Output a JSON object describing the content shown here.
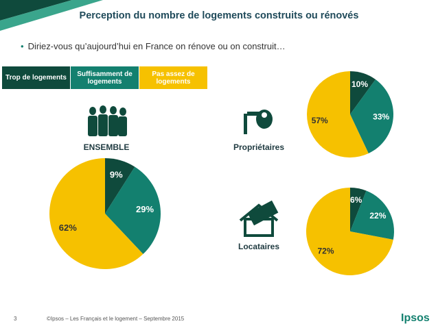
{
  "slide": {
    "title": "Perception du nombre de logements construits ou rénovés",
    "question": "Diriez-vous qu’aujourd’hui en France on rénove ou on construit…",
    "page_number": "3",
    "footer": "©Ipsos – Les Français et le logement – Septembre 2015",
    "brand": "Ipsos",
    "legend": {
      "labels": [
        "Trop de logements",
        "Suffisamment de logements",
        "Pas assez de logements"
      ],
      "colors": [
        "#0f4a3c",
        "#13806f",
        "#f6c100"
      ]
    }
  },
  "chart_data": [
    {
      "type": "pie",
      "title": "ENSEMBLE",
      "values": [
        9,
        29,
        62
      ],
      "value_labels": [
        "9%",
        "29%",
        "62%"
      ],
      "colors": [
        "#0f4a3c",
        "#13806f",
        "#f6c100"
      ]
    },
    {
      "type": "pie",
      "title": "Propriétaires",
      "values": [
        10,
        33,
        57
      ],
      "value_labels": [
        "10%",
        "33%",
        "57%"
      ],
      "colors": [
        "#0f4a3c",
        "#13806f",
        "#f6c100"
      ]
    },
    {
      "type": "pie",
      "title": "Locataires",
      "values": [
        6,
        22,
        72
      ],
      "value_labels": [
        "6%",
        "22%",
        "72%"
      ],
      "colors": [
        "#0f4a3c",
        "#13806f",
        "#f6c100"
      ]
    }
  ]
}
